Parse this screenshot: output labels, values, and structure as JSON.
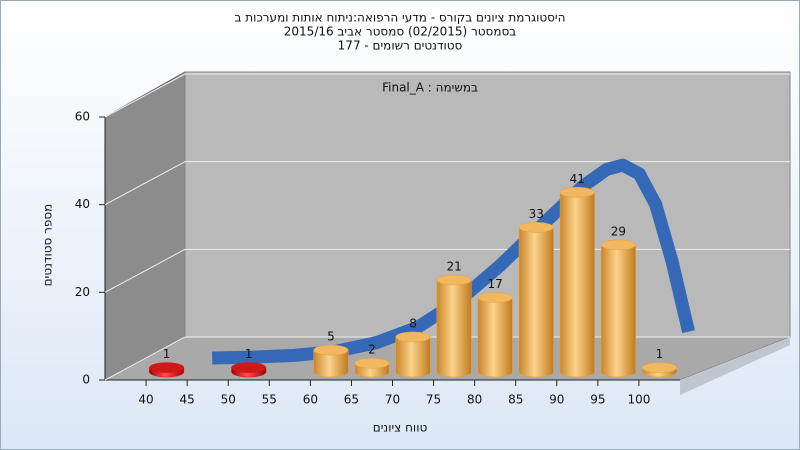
{
  "chart_data": {
    "type": "histogram",
    "title": [
      "היסטוגרמת ציונים בקורס - מדעי הרפואה:ניתוח אותות ומערכות ב",
      "בסמסטר  (02/2015)  סמסטר אביב 2015/16",
      "סטודנטים רשומים - 177"
    ],
    "annotation": "במשימה : Final_A",
    "xlabel": "טווח ציונים",
    "ylabel": "מספר סטודנטים",
    "bins": [
      40,
      45,
      50,
      55,
      60,
      65,
      70,
      75,
      80,
      85,
      90,
      95,
      100,
      105
    ],
    "values": [
      1,
      0,
      1,
      0,
      5,
      2,
      8,
      21,
      17,
      33,
      41,
      29,
      1
    ],
    "colors": [
      "#e01010",
      "#e01010",
      "#e01010",
      "#e01010",
      "#e8a040",
      "#e8a040",
      "#e8a040",
      "#e8a040",
      "#e8a040",
      "#e8a040",
      "#e8a040",
      "#e8a040",
      "#e8a040"
    ],
    "value_labels": [
      "1",
      null,
      "1",
      null,
      "5",
      "2",
      "8",
      "21",
      "17",
      "33",
      "41",
      "29",
      "1"
    ],
    "fit_curve": {
      "color": "#3569b8",
      "x": [
        45,
        50,
        55,
        60,
        65,
        70,
        75,
        80,
        85,
        90,
        93,
        95,
        97,
        99,
        101,
        103
      ],
      "values": [
        0,
        0.2,
        0.6,
        1.5,
        3.5,
        7,
        13,
        21,
        30,
        39,
        43,
        44,
        42,
        35,
        22,
        6
      ]
    },
    "xlim": [
      35,
      105
    ],
    "ylim": [
      0,
      60
    ],
    "xticks": [
      40,
      45,
      50,
      55,
      60,
      65,
      70,
      75,
      80,
      85,
      90,
      95,
      100
    ],
    "yticks": [
      0,
      20,
      40,
      60
    ],
    "grid": true
  }
}
